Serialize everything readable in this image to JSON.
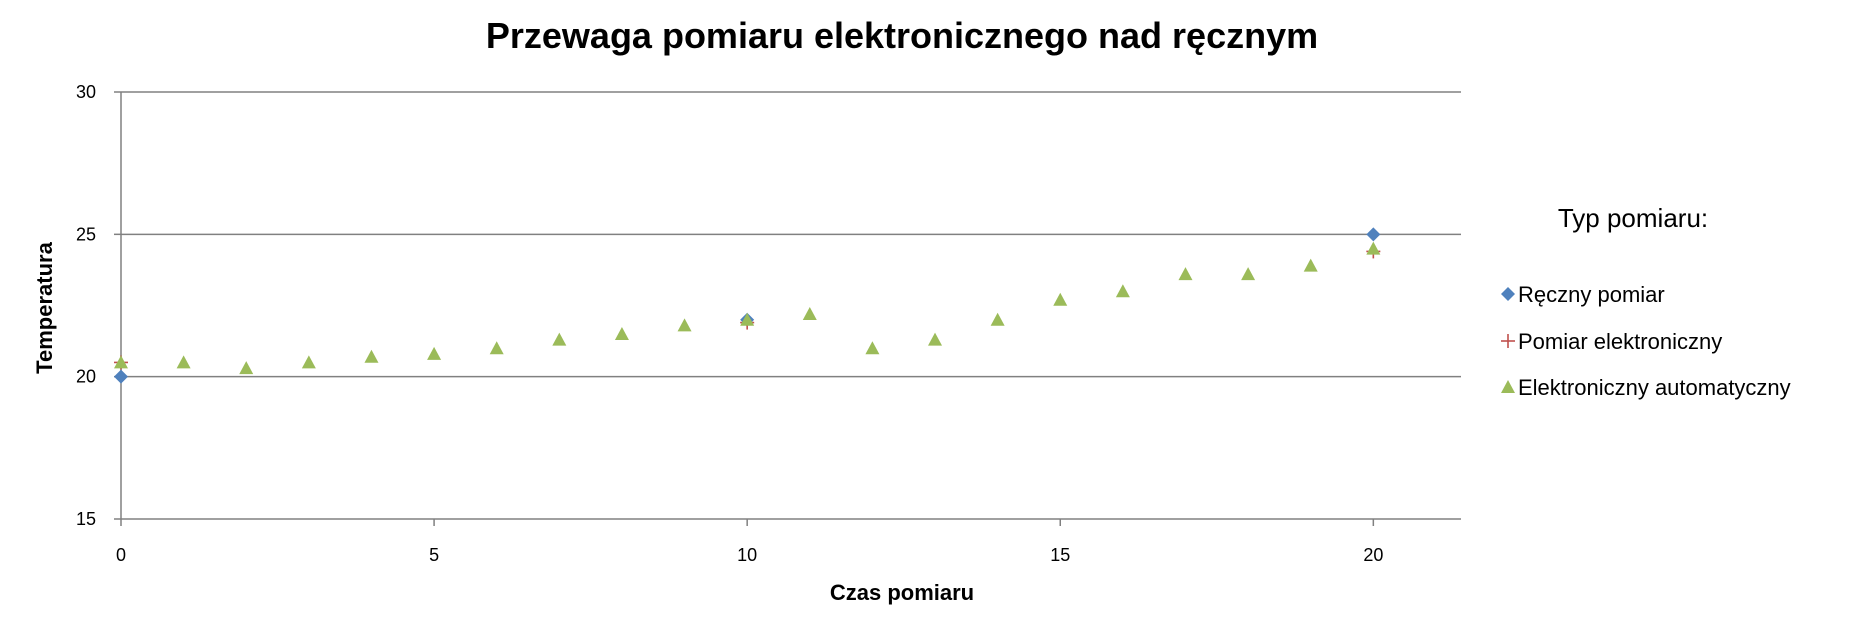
{
  "chart_data": {
    "type": "scatter",
    "title": "Przewaga pomiaru elektronicznego nad ręcznym",
    "xlabel": "Czas pomiaru",
    "ylabel": "Temperatura",
    "xlim": [
      0,
      21.4
    ],
    "ylim": [
      15,
      30
    ],
    "x_ticks": [
      0,
      5,
      10,
      15,
      20
    ],
    "y_ticks": [
      15,
      20,
      25,
      30
    ],
    "grid": true,
    "legend": {
      "title": "Typ pomiaru:",
      "placement": "right"
    },
    "series": [
      {
        "name": "Ręczny pomiar",
        "marker": "diamond",
        "color": "#4f81bd",
        "points": [
          [
            0,
            20
          ],
          [
            10,
            22
          ],
          [
            20,
            25
          ]
        ]
      },
      {
        "name": "Pomiar elektroniczny",
        "marker": "plus",
        "color": "#c0504d",
        "points": [
          [
            0,
            20.5
          ],
          [
            10,
            21.9
          ],
          [
            20,
            24.4
          ]
        ]
      },
      {
        "name": "Elektroniczny automatyczny",
        "marker": "triangle",
        "color": "#9bbb59",
        "points": [
          [
            0,
            20.5
          ],
          [
            1,
            20.5
          ],
          [
            2,
            20.3
          ],
          [
            3,
            20.5
          ],
          [
            4,
            20.7
          ],
          [
            5,
            20.8
          ],
          [
            6,
            21.0
          ],
          [
            7,
            21.3
          ],
          [
            8,
            21.5
          ],
          [
            9,
            21.8
          ],
          [
            10,
            22.0
          ],
          [
            11,
            22.2
          ],
          [
            12,
            21.0
          ],
          [
            13,
            21.3
          ],
          [
            14,
            22.0
          ],
          [
            15,
            22.7
          ],
          [
            16,
            23.0
          ],
          [
            17,
            23.6
          ],
          [
            18,
            23.6
          ],
          [
            19,
            23.9
          ],
          [
            20,
            24.5
          ]
        ]
      }
    ]
  }
}
